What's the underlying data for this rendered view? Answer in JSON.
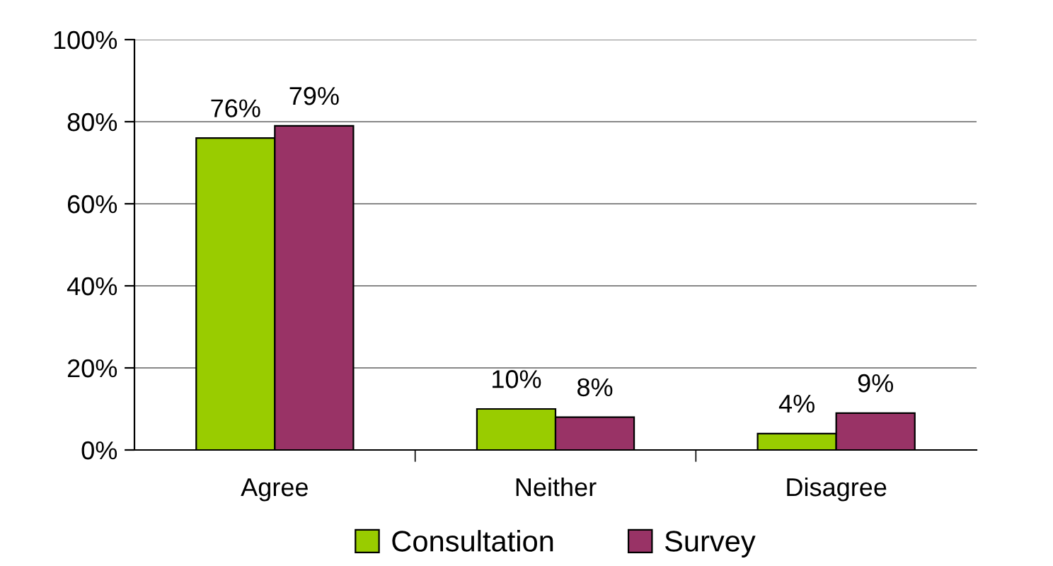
{
  "chart_data": {
    "type": "bar",
    "categories": [
      "Agree",
      "Neither",
      "Disagree"
    ],
    "series": [
      {
        "name": "Consultation",
        "color": "#99cc00",
        "values": [
          76,
          10,
          4
        ],
        "value_labels": [
          "76%",
          "10%",
          "4%"
        ]
      },
      {
        "name": "Survey",
        "color": "#993366",
        "values": [
          79,
          8,
          9
        ],
        "value_labels": [
          "79%",
          "8%",
          "9%"
        ]
      }
    ],
    "ylim": [
      0,
      100
    ],
    "yticks": [
      {
        "value": 0,
        "label": "0%"
      },
      {
        "value": 20,
        "label": "20%"
      },
      {
        "value": 40,
        "label": "40%"
      },
      {
        "value": 60,
        "label": "60%"
      },
      {
        "value": 80,
        "label": "80%"
      },
      {
        "value": 100,
        "label": "100%"
      }
    ],
    "grid": "y",
    "legend": "bottom"
  }
}
